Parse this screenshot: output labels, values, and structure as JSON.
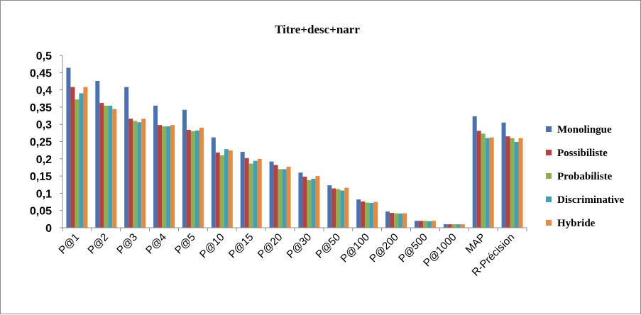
{
  "chart_data": {
    "type": "bar",
    "title": "Titre+desc+narr",
    "xlabel": "",
    "ylabel": "",
    "ylim": [
      0,
      0.5
    ],
    "y_ticks": [
      "0",
      "0,05",
      "0,1",
      "0,15",
      "0,2",
      "0,25",
      "0,3",
      "0,35",
      "0,4",
      "0,45",
      "0,5"
    ],
    "grid": false,
    "legend_position": "right",
    "categories": [
      "P@1",
      "P@2",
      "P@3",
      "P@4",
      "P@5",
      "P@10",
      "P@15",
      "P@20",
      "P@30",
      "P@50",
      "P@100",
      "P@200",
      "P@500",
      "P@1000",
      "MAP",
      "R-Précision"
    ],
    "series": [
      {
        "name": "Monolingue",
        "color": "#4a71b0",
        "values": [
          0.464,
          0.426,
          0.408,
          0.354,
          0.342,
          0.262,
          0.22,
          0.192,
          0.16,
          0.123,
          0.082,
          0.047,
          0.02,
          0.01,
          0.323,
          0.305
        ]
      },
      {
        "name": "Possibiliste",
        "color": "#b9403e",
        "values": [
          0.408,
          0.362,
          0.316,
          0.298,
          0.284,
          0.218,
          0.202,
          0.182,
          0.148,
          0.114,
          0.076,
          0.043,
          0.02,
          0.01,
          0.281,
          0.265
        ]
      },
      {
        "name": "Probabiliste",
        "color": "#8db04f",
        "values": [
          0.372,
          0.354,
          0.31,
          0.294,
          0.28,
          0.21,
          0.186,
          0.17,
          0.138,
          0.112,
          0.073,
          0.042,
          0.02,
          0.01,
          0.273,
          0.26
        ]
      },
      {
        "name": "Discriminative",
        "color": "#3fa0bc",
        "values": [
          0.39,
          0.354,
          0.306,
          0.294,
          0.282,
          0.228,
          0.194,
          0.17,
          0.142,
          0.108,
          0.072,
          0.041,
          0.019,
          0.01,
          0.26,
          0.249
        ]
      },
      {
        "name": "Hybride",
        "color": "#e8893b",
        "values": [
          0.408,
          0.344,
          0.316,
          0.298,
          0.29,
          0.224,
          0.2,
          0.177,
          0.15,
          0.116,
          0.075,
          0.042,
          0.02,
          0.01,
          0.262,
          0.26
        ]
      }
    ]
  }
}
